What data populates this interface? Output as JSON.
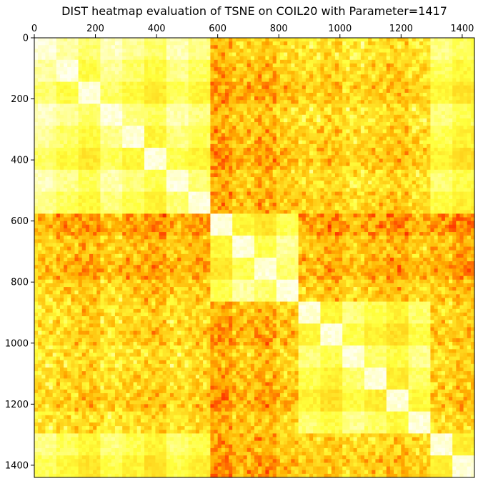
{
  "chart_data": {
    "type": "heatmap",
    "title": "DIST heatmap evaluation of TSNE on COIL20 with Parameter=1417",
    "xlabel": "",
    "ylabel": "",
    "matrix_size": 1440,
    "xlim": [
      0,
      1440
    ],
    "ylim": [
      1440,
      0
    ],
    "x_axis_position": "top",
    "x_ticks": [
      "0",
      "200",
      "400",
      "600",
      "800",
      "1000",
      "1200",
      "1400"
    ],
    "y_ticks": [
      "0",
      "200",
      "400",
      "600",
      "800",
      "1000",
      "1200",
      "1400"
    ],
    "colormap": "hot_r",
    "colors": {
      "low": "#ffffff",
      "mid_low": "#ffff33",
      "mid": "#ffb000",
      "high": "#ff3300",
      "max": "#cc0000"
    },
    "grid": false,
    "legend": "none",
    "object_clusters_start": [
      0,
      72,
      144,
      216,
      288,
      360,
      432,
      504,
      576,
      648,
      720,
      792,
      864,
      936,
      1008,
      1080,
      1152,
      1224,
      1296,
      1368
    ],
    "object_group_of_cluster": [
      0,
      0,
      0,
      0,
      0,
      0,
      0,
      0,
      1,
      1,
      1,
      1,
      2,
      2,
      2,
      2,
      2,
      2,
      0,
      0
    ],
    "block_distance_levels": [
      [
        0.08,
        0.55,
        0.45
      ],
      [
        0.55,
        0.1,
        0.55
      ],
      [
        0.45,
        0.55,
        0.12
      ]
    ]
  }
}
